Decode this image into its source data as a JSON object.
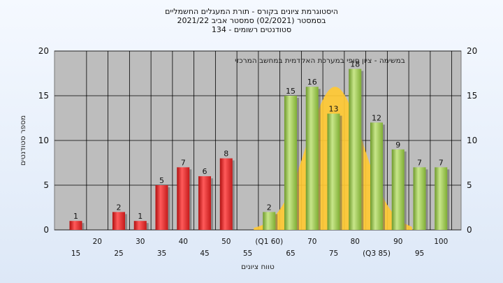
{
  "title_lines": [
    "היסטוגרמת ציונים בקורס - תורת המעגלים החשמליים",
    "בסמסטר  (02/2021)  סמסטר אביב 2021/22",
    "סטודנטים רשומים - 134"
  ],
  "chart_data": {
    "type": "bar",
    "inner_title": "במשימה - ציון סופי במערכת האקדמית במחשב המרכזי",
    "xlabel": "טווח ציונים",
    "ylabel": "מספר סטודנטים",
    "ylim": [
      0,
      20
    ],
    "yticks": [
      0,
      5,
      10,
      15,
      20
    ],
    "grid": true,
    "categories": [
      "15",
      "20",
      "25",
      "30",
      "35",
      "40",
      "45",
      "50",
      "55",
      "(Q1 60)",
      "65",
      "70",
      "75",
      "80",
      "(Q3 85)",
      "90",
      "95",
      "100"
    ],
    "values": [
      1,
      0,
      2,
      1,
      5,
      7,
      6,
      8,
      0,
      2,
      15,
      16,
      13,
      18,
      12,
      9,
      7,
      7
    ],
    "colors": {
      "low": "#e02828",
      "high": "#9ccc4a",
      "curve": "#ffc933",
      "plot_bg": "#bdbdbd"
    },
    "red_until_index": 7
  }
}
